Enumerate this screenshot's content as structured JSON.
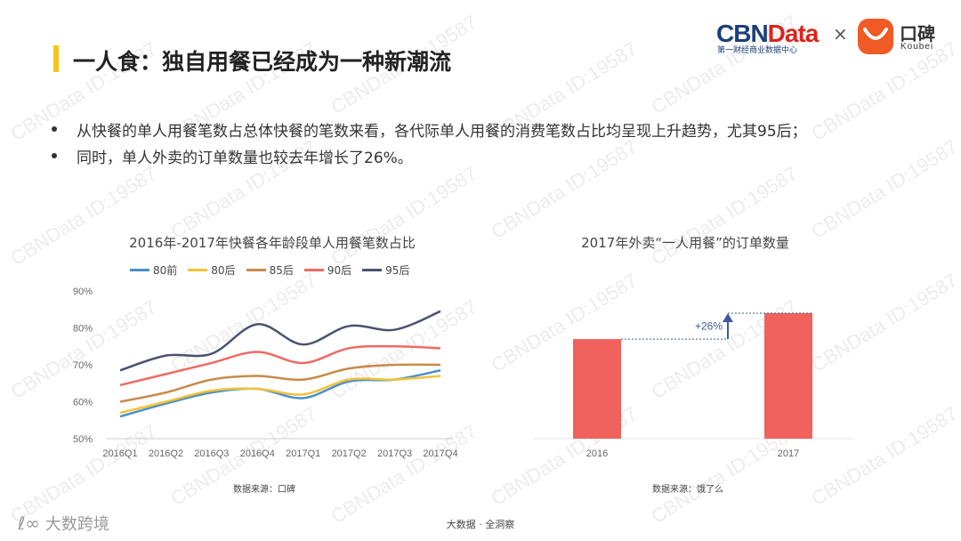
{
  "title": "一人食：独自用餐已经成为一种新潮流",
  "logos": {
    "cbn_main": "CBN",
    "cbn_accent": "Data",
    "cbn_sub": "第一财经商业数据中心",
    "separator": "×",
    "koubei_cn": "口碑",
    "koubei_en": "Koubei"
  },
  "bullets": [
    "从快餐的单人用餐笔数占总体快餐的笔数来看，各代际单人用餐的消费笔数占比均呈现上升趋势，尤其95后；",
    "同时，单人外卖的订单数量也较去年增长了26%。"
  ],
  "watermark_text": "CBNData ID:19587",
  "chart_data": [
    {
      "type": "line",
      "title": "2016年-2017年快餐各年龄段单人用餐笔数占比",
      "categories": [
        "2016Q1",
        "2016Q2",
        "2016Q3",
        "2016Q4",
        "2017Q1",
        "2017Q2",
        "2017Q3",
        "2017Q4"
      ],
      "ylim": [
        50,
        90
      ],
      "yticks": [
        "50%",
        "60%",
        "70%",
        "80%",
        "90%"
      ],
      "grid": false,
      "legend_position": "top",
      "series": [
        {
          "name": "80前",
          "color": "#4a90c8",
          "values": [
            56,
            59.5,
            62.5,
            63.5,
            61,
            65.5,
            66,
            68.5
          ]
        },
        {
          "name": "80后",
          "color": "#f2c23a",
          "values": [
            57,
            60,
            63,
            63.5,
            62,
            66,
            66,
            67
          ]
        },
        {
          "name": "85后",
          "color": "#c98a4b",
          "values": [
            60,
            62.5,
            66,
            67,
            66,
            69,
            70,
            70
          ]
        },
        {
          "name": "90后",
          "color": "#ee6b63",
          "values": [
            64.5,
            67.5,
            70.5,
            73.5,
            70.5,
            74.5,
            75,
            74.5
          ]
        },
        {
          "name": "95后",
          "color": "#4a5270",
          "values": [
            68.5,
            72.5,
            73,
            81,
            75.5,
            80.5,
            79.5,
            84.5
          ]
        }
      ],
      "source": "数据来源：口碑"
    },
    {
      "type": "bar",
      "title": "2017年外卖“一人用餐”的订单数量",
      "categories": [
        "2016",
        "2017"
      ],
      "values": [
        100,
        126
      ],
      "color": "#f0625b",
      "annotation": "+26%",
      "source": "数据来源：饿了么"
    }
  ],
  "footer": {
    "brand_icon": "ℓ∞",
    "brand": "大数跨境",
    "center": "大数据 · 全洞察"
  }
}
